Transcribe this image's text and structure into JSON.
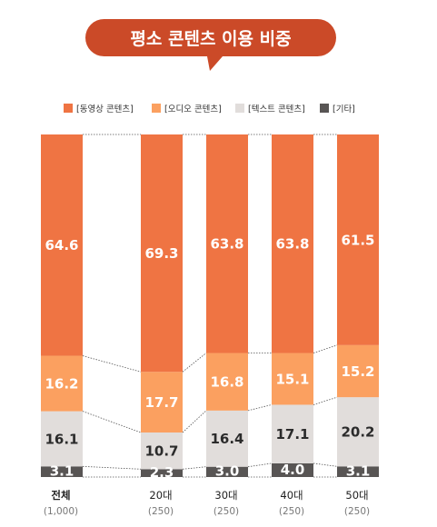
{
  "colors": {
    "video": "#EF7443",
    "audio": "#FBA060",
    "text": "#E1DDDB",
    "other": "#585554",
    "title_bg": "#CB4A28",
    "dark_label": "#2b2b2b",
    "light_label": "#ffffff"
  },
  "chart_data": {
    "type": "bar",
    "stacked": true,
    "normalized_to": 100,
    "title": "평소 콘텐츠 이용 비중",
    "legend_position": "top-center",
    "grid": false,
    "categories": [
      "전체",
      "20대",
      "30대",
      "40대",
      "50대"
    ],
    "sample_sizes": [
      "(1,000)",
      "(250)",
      "(250)",
      "(250)",
      "(250)"
    ],
    "series": [
      {
        "name": "[기타]",
        "key": "other",
        "values": [
          3.1,
          2.3,
          3.0,
          4.0,
          3.1
        ]
      },
      {
        "name": "[텍스트 콘텐츠]",
        "key": "text",
        "values": [
          16.1,
          10.7,
          16.4,
          17.1,
          20.2
        ]
      },
      {
        "name": "[오디오 콘텐츠]",
        "key": "audio",
        "values": [
          16.2,
          17.7,
          16.8,
          15.1,
          15.2
        ]
      },
      {
        "name": "[동영상 콘텐츠]",
        "key": "video",
        "values": [
          64.6,
          69.3,
          63.8,
          63.8,
          61.5
        ]
      }
    ],
    "value_labels": [
      [
        "3.1",
        "2.3",
        "3.0",
        "4.0",
        "3.1"
      ],
      [
        "16.1",
        "10.7",
        "16.4",
        "17.1",
        "20.2"
      ],
      [
        "16.2",
        "17.7",
        "16.8",
        "15.1",
        "15.2"
      ],
      [
        "64.6",
        "69.3",
        "63.8",
        "63.8",
        "61.5"
      ]
    ],
    "legend_order": [
      "video",
      "audio",
      "text",
      "other"
    ]
  }
}
